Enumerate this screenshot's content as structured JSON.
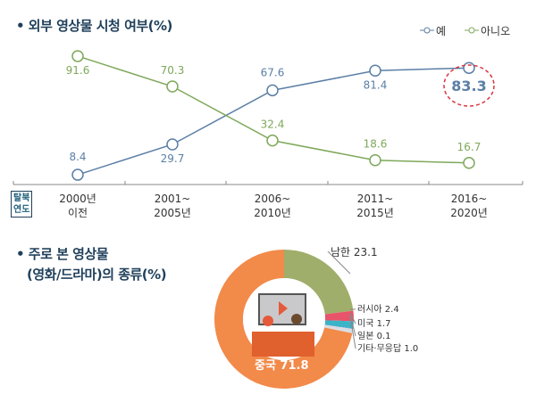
{
  "chart_data": [
    {
      "type": "line",
      "title": "• 외부 영상물 시청 여부(%)",
      "axis_label": [
        "탈북",
        "연도"
      ],
      "categories": [
        [
          "2000년",
          "이전"
        ],
        [
          "2001~",
          "2005년"
        ],
        [
          "2006~",
          "2010년"
        ],
        [
          "2011~",
          "2015년"
        ],
        [
          "2016~",
          "2020년"
        ]
      ],
      "series": [
        {
          "name": "예",
          "color": "#5b7fa6",
          "values": [
            8.4,
            29.7,
            67.6,
            81.4,
            83.3
          ],
          "labels": [
            "8.4",
            "29.7",
            "67.6",
            "81.4",
            "83.3"
          ]
        },
        {
          "name": "아니오",
          "color": "#7ea85a",
          "values": [
            91.6,
            70.3,
            32.4,
            18.6,
            16.7
          ],
          "labels": [
            "91.6",
            "70.3",
            "32.4",
            "18.6",
            "16.7"
          ]
        }
      ],
      "highlight": {
        "value": "83.3",
        "color": "#d9363e"
      },
      "legend": "top-right",
      "grid": false
    },
    {
      "type": "pie",
      "title": [
        "• 주로 본 영상물",
        "(영화/드라마)의 종류(%)"
      ],
      "slices": [
        {
          "label": "남한 23.1",
          "value": 23.1,
          "color": "#9fae6a"
        },
        {
          "label": "러시아 2.4",
          "value": 2.4,
          "color": "#e8546a"
        },
        {
          "label": "미국 1.7",
          "value": 1.7,
          "color": "#3bb4c8"
        },
        {
          "label": "일본 0.1",
          "value": 0.1,
          "color": "#6c8fbf"
        },
        {
          "label": "기타·무응답 1.0",
          "value": 1.0,
          "color": "#d9dde2"
        },
        {
          "label": "중국 71.8",
          "value": 71.8,
          "color": "#f28a4a"
        }
      ]
    }
  ]
}
